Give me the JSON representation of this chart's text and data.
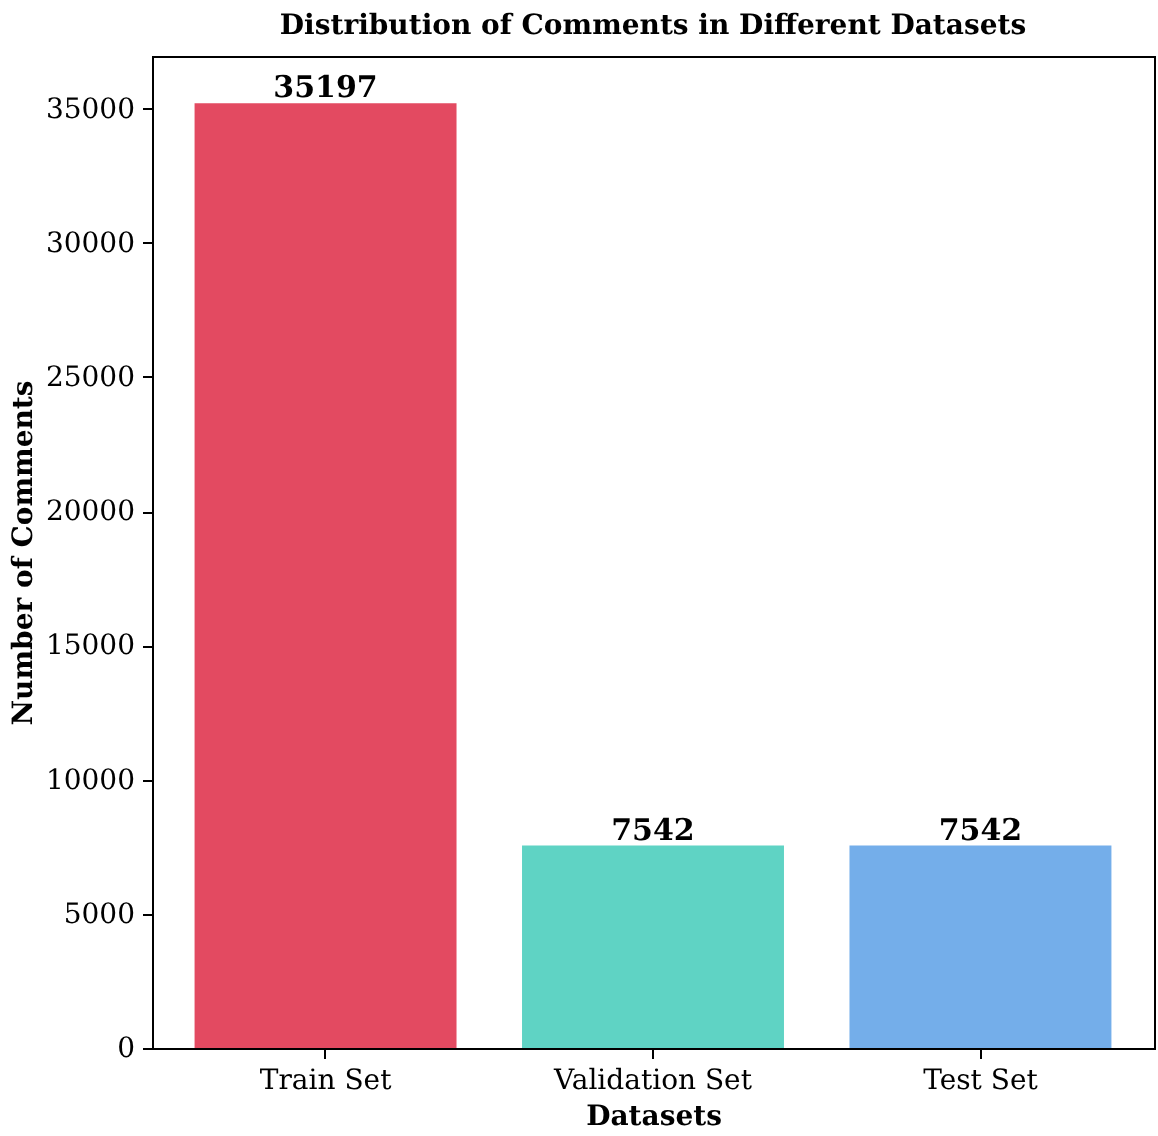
{
  "chart_data": {
    "type": "bar",
    "title": "Distribution of Comments in Different Datasets",
    "xlabel": "Datasets",
    "ylabel": "Number of Comments",
    "categories": [
      "Train Set",
      "Validation Set",
      "Test Set"
    ],
    "values": [
      35197,
      7542,
      7542
    ],
    "colors": [
      "#e34a61",
      "#5fd3c4",
      "#74aeea"
    ],
    "ylim": [
      0,
      36957
    ],
    "yticks": [
      0,
      5000,
      10000,
      15000,
      20000,
      25000,
      30000,
      35000
    ],
    "data_labels": true,
    "grid": false
  }
}
